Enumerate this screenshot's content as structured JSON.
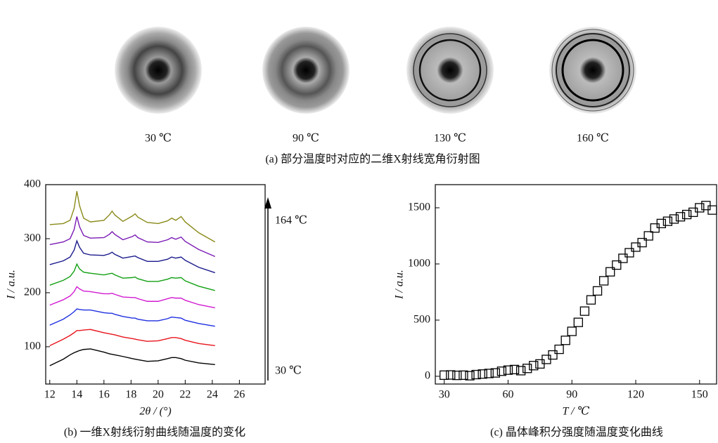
{
  "figure_a": {
    "images": [
      {
        "label": "30 ℃"
      },
      {
        "label": "90 ℃"
      },
      {
        "label": "130 ℃"
      },
      {
        "label": "160 ℃"
      }
    ],
    "caption": "(a) 部分温度时对应的二维X射线宽角衍射图"
  },
  "chart_data": [
    {
      "type": "line",
      "caption": "(b) 一维X射线衍射曲线随温度的变化",
      "xlabel": "2θ / (°)",
      "ylabel": "I / a.u.",
      "annotations": [
        "164 ℃",
        "30 ℃"
      ],
      "x": [
        12,
        13,
        13.5,
        13.8,
        14,
        14.2,
        14.5,
        15,
        16,
        16.4,
        16.6,
        16.8,
        17.4,
        18.1,
        18.3,
        18.5,
        19.2,
        20,
        20.7,
        21,
        21.3,
        21.7,
        22,
        23,
        24.2
      ],
      "series": [
        {
          "color": "#000000",
          "values": [
            65,
            77,
            85,
            89,
            91,
            93,
            95,
            96,
            90,
            87,
            86,
            85,
            82,
            78,
            77,
            76,
            73,
            74,
            78,
            80,
            80,
            78,
            75,
            70,
            67
          ]
        },
        {
          "color": "#e8141c",
          "values": [
            102,
            114,
            121,
            126,
            130,
            130,
            131,
            132,
            126,
            124,
            123,
            122,
            118,
            115,
            114,
            113,
            110,
            111,
            115,
            117,
            117,
            115,
            112,
            106,
            102
          ]
        },
        {
          "color": "#1f2fe0",
          "values": [
            140,
            151,
            159,
            165,
            170,
            169,
            168,
            168,
            163,
            162,
            162,
            160,
            156,
            153,
            153,
            151,
            148,
            148,
            152,
            155,
            154,
            153,
            149,
            143,
            138
          ]
        },
        {
          "color": "#d21ad2",
          "values": [
            177,
            187,
            194,
            202,
            211,
            207,
            203,
            202,
            198,
            198,
            199,
            197,
            192,
            191,
            191,
            189,
            184,
            184,
            189,
            191,
            190,
            190,
            186,
            178,
            172
          ]
        },
        {
          "color": "#12a012",
          "values": [
            214,
            223,
            230,
            240,
            253,
            244,
            238,
            236,
            233,
            235,
            236,
            233,
            227,
            228,
            229,
            226,
            221,
            221,
            225,
            228,
            227,
            228,
            222,
            212,
            204
          ]
        },
        {
          "color": "#1a1a8c",
          "values": [
            252,
            259,
            266,
            279,
            296,
            284,
            273,
            270,
            269,
            272,
            275,
            271,
            264,
            267,
            268,
            265,
            258,
            258,
            262,
            266,
            264,
            266,
            260,
            247,
            237
          ]
        },
        {
          "color": "#7a1ab4",
          "values": [
            289,
            294,
            300,
            317,
            341,
            322,
            306,
            301,
            302,
            308,
            313,
            308,
            298,
            304,
            307,
            302,
            294,
            293,
            298,
            302,
            299,
            303,
            295,
            280,
            267
          ]
        },
        {
          "color": "#8a8a1a",
          "values": [
            326,
            328,
            334,
            356,
            388,
            361,
            338,
            331,
            334,
            344,
            351,
            344,
            332,
            342,
            346,
            340,
            330,
            328,
            333,
            338,
            334,
            341,
            331,
            311,
            294
          ]
        }
      ],
      "xlim": [
        11.7,
        27.9
      ],
      "ylim": [
        31,
        400
      ],
      "xticks": [
        12,
        14,
        16,
        18,
        20,
        22,
        24,
        26
      ],
      "yticks": [
        100,
        200,
        300,
        400
      ]
    },
    {
      "type": "scatter",
      "caption": "(c) 晶体峰积分强度随温度变化曲线",
      "xlabel": "T / ℃",
      "ylabel": "I / a.u.",
      "color": "#000000",
      "x": [
        30,
        33,
        36,
        39,
        42,
        45,
        48,
        51,
        54,
        57,
        60,
        63,
        66,
        69,
        72,
        75,
        78,
        81,
        84,
        87,
        90,
        93,
        96,
        99,
        102,
        105,
        108,
        111,
        114,
        117,
        120,
        123,
        126,
        129,
        132,
        135,
        138,
        141,
        144,
        147,
        150,
        153,
        156
      ],
      "values": [
        10,
        12,
        8,
        10,
        5,
        15,
        20,
        25,
        30,
        45,
        55,
        60,
        50,
        70,
        95,
        110,
        150,
        190,
        240,
        320,
        400,
        480,
        580,
        680,
        760,
        850,
        930,
        990,
        1050,
        1100,
        1150,
        1190,
        1250,
        1320,
        1360,
        1380,
        1400,
        1420,
        1440,
        1460,
        1500,
        1520,
        1480
      ],
      "xlim": [
        25.8,
        158
      ],
      "ylim": [
        -69,
        1706
      ],
      "xticks": [
        30,
        60,
        90,
        120,
        150
      ],
      "yticks": [
        0,
        500,
        1000,
        1500
      ]
    }
  ]
}
